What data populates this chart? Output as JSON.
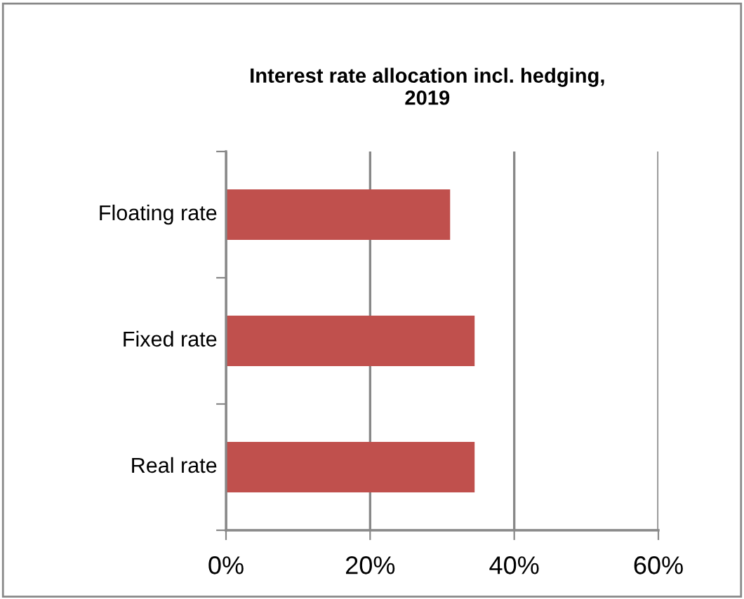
{
  "chart_data": {
    "type": "bar",
    "orientation": "horizontal",
    "title": "Interest rate allocation incl. hedging,\n2019",
    "categories": [
      "Floating rate",
      "Fixed rate",
      "Real rate"
    ],
    "values": [
      31.1,
      34.5,
      34.5
    ],
    "color": "#c0504d",
    "xlim": [
      0,
      60
    ],
    "xticks": [
      {
        "value": 0,
        "label": "0%"
      },
      {
        "value": 20,
        "label": "20%"
      },
      {
        "value": 40,
        "label": "40%"
      },
      {
        "value": 60,
        "label": "60%"
      }
    ],
    "grid": "x",
    "legend": false
  }
}
